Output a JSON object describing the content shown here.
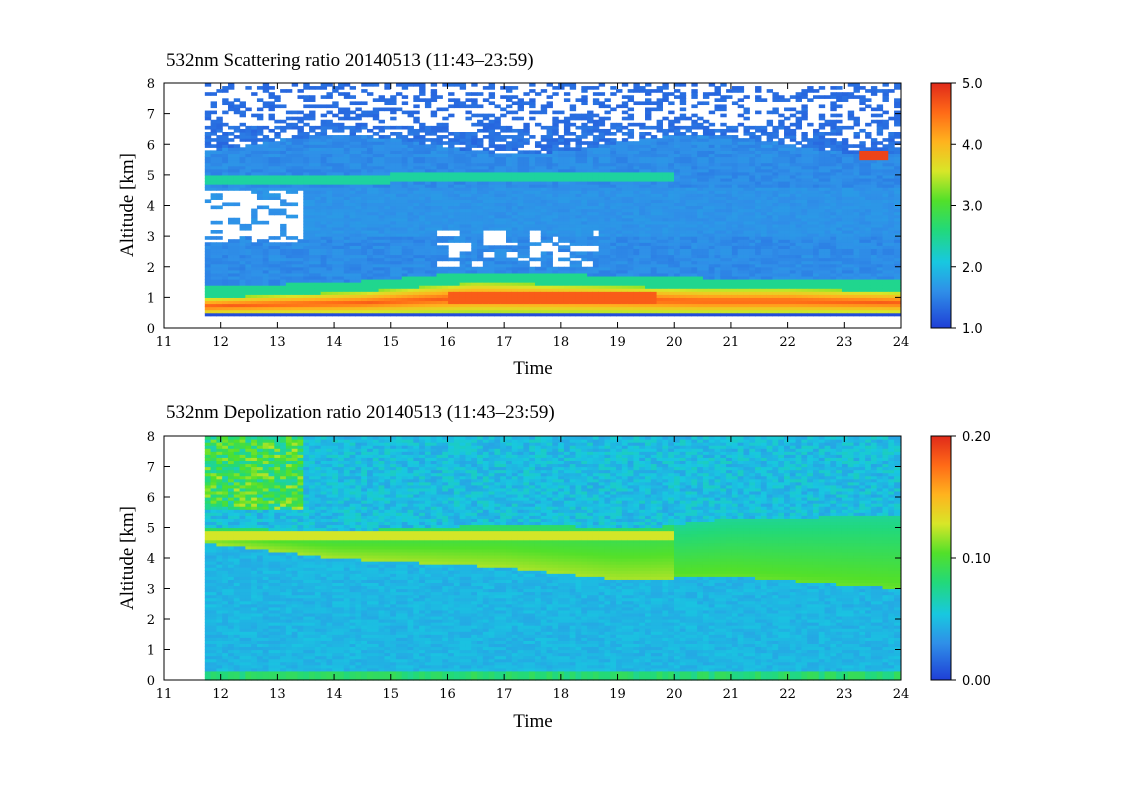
{
  "chart_data": [
    {
      "type": "heatmap",
      "title": "532nm Scattering ratio  20140513 (11:43–23:59)",
      "xlabel": "Time",
      "ylabel": "Altitude [km]",
      "xlim": [
        11,
        24
      ],
      "ylim": [
        0,
        8
      ],
      "x_ticks": [
        "11",
        "12",
        "13",
        "14",
        "15",
        "16",
        "17",
        "18",
        "19",
        "20",
        "21",
        "22",
        "23",
        "24"
      ],
      "y_ticks": [
        "0",
        "1",
        "2",
        "3",
        "4",
        "5",
        "6",
        "7",
        "8"
      ],
      "data_time_range": [
        11.72,
        23.98
      ],
      "colorbar": {
        "min": 1.0,
        "max": 5.0,
        "tick_labels": [
          "1.0",
          "2.0",
          "3.0",
          "4.0",
          "5.0"
        ],
        "tick_values": [
          1.0,
          2.0,
          3.0,
          4.0,
          5.0
        ]
      },
      "features": {
        "boundary_layer_top_km": [
          [
            11.7,
            1.0
          ],
          [
            14.5,
            1.2
          ],
          [
            16.5,
            1.5
          ],
          [
            18.5,
            1.4
          ],
          [
            20.5,
            1.3
          ],
          [
            22,
            1.3
          ],
          [
            24,
            1.2
          ]
        ],
        "elevated_layer_km": [
          [
            11.7,
            4.8
          ],
          [
            15,
            4.9
          ],
          [
            18,
            5.0
          ],
          [
            19.5,
            5.0
          ]
        ],
        "cloud_patch": {
          "time": 23.55,
          "altitude_km": 5.7
        }
      }
    },
    {
      "type": "heatmap",
      "title": "532nm Depolization ratio  20140513 (11:43–23:59)",
      "xlabel": "Time",
      "ylabel": "Altitude [km]",
      "xlim": [
        11,
        24
      ],
      "ylim": [
        0,
        8
      ],
      "x_ticks": [
        "11",
        "12",
        "13",
        "14",
        "15",
        "16",
        "17",
        "18",
        "19",
        "20",
        "21",
        "22",
        "23",
        "24"
      ],
      "y_ticks": [
        "0",
        "1",
        "2",
        "3",
        "4",
        "5",
        "6",
        "7",
        "8"
      ],
      "data_time_range": [
        11.72,
        23.98
      ],
      "colorbar": {
        "min": 0.0,
        "max": 0.2,
        "tick_labels": [
          "0.00",
          "0.10",
          "0.20"
        ],
        "tick_values": [
          0.0,
          0.1,
          0.2
        ]
      },
      "features": {
        "dust_layer_top_km": [
          [
            11.7,
            5.0
          ],
          [
            14,
            4.9
          ],
          [
            17,
            5.1
          ],
          [
            19.5,
            5.0
          ],
          [
            21,
            5.3
          ],
          [
            24,
            5.4
          ]
        ],
        "dust_layer_bottom_km": [
          [
            11.7,
            4.5
          ],
          [
            14,
            4.0
          ],
          [
            17,
            3.7
          ],
          [
            19,
            3.3
          ],
          [
            21,
            3.4
          ],
          [
            24,
            3.0
          ]
        ]
      }
    }
  ],
  "colors": {
    "scale": [
      "#1f3fd6",
      "#2f8fe8",
      "#18c8e0",
      "#22d97a",
      "#52e02a",
      "#d8e628",
      "#ffb31e",
      "#ff6a17",
      "#e02a1a"
    ],
    "missing": "#ffffff"
  }
}
